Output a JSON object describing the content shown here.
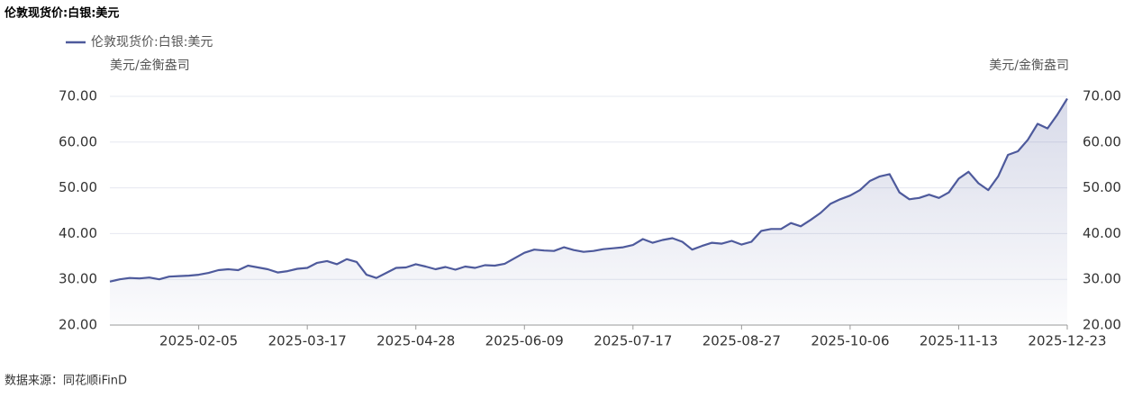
{
  "chart_data": {
    "type": "line",
    "title": "伦敦现货价:白银:美元",
    "y_axis_label": "美元/金衡盎司",
    "y2_axis_label": "美元/金衡盎司",
    "source": "数据来源：同花顺iFinD",
    "categories": [
      null,
      null,
      null,
      null,
      null,
      null,
      null,
      null,
      null,
      "2025-02-05",
      null,
      null,
      null,
      null,
      null,
      null,
      null,
      null,
      null,
      null,
      "2025-03-17",
      null,
      null,
      null,
      null,
      null,
      null,
      null,
      null,
      null,
      null,
      "2025-04-28",
      null,
      null,
      null,
      null,
      null,
      null,
      null,
      null,
      null,
      null,
      "2025-06-09",
      null,
      null,
      null,
      null,
      null,
      null,
      null,
      null,
      null,
      null,
      "2025-07-17",
      null,
      null,
      null,
      null,
      null,
      null,
      null,
      null,
      null,
      null,
      "2025-08-27",
      null,
      null,
      null,
      null,
      null,
      null,
      null,
      null,
      null,
      null,
      "2025-10-06",
      null,
      null,
      null,
      null,
      null,
      null,
      null,
      null,
      null,
      null,
      "2025-11-13",
      null,
      null,
      null,
      null,
      null,
      null,
      null,
      null,
      null,
      null,
      "2025-12-23"
    ],
    "series": [
      {
        "name": "伦敦现货价:白银:美元",
        "color": "#4e5a9c",
        "values": [
          29.5,
          30.0,
          30.3,
          30.2,
          30.4,
          30.0,
          30.6,
          30.7,
          30.8,
          31.0,
          31.4,
          32.0,
          32.2,
          32.0,
          33.0,
          32.6,
          32.2,
          31.5,
          31.8,
          32.3,
          32.5,
          33.6,
          34.0,
          33.3,
          34.4,
          33.8,
          31.0,
          30.3,
          31.4,
          32.5,
          32.6,
          33.3,
          32.8,
          32.2,
          32.7,
          32.1,
          32.8,
          32.5,
          33.1,
          33.0,
          33.4,
          34.6,
          35.8,
          36.5,
          36.3,
          36.2,
          37.0,
          36.4,
          36.0,
          36.2,
          36.6,
          36.8,
          37.0,
          37.5,
          38.8,
          38.0,
          38.6,
          39.0,
          38.2,
          36.5,
          37.3,
          38.0,
          37.8,
          38.4,
          37.6,
          38.2,
          40.6,
          41.0,
          41.0,
          42.3,
          41.6,
          43.0,
          44.5,
          46.5,
          47.5,
          48.3,
          49.5,
          51.5,
          52.5,
          53.0,
          49.0,
          47.5,
          47.8,
          48.5,
          47.8,
          49.0,
          52.0,
          53.5,
          51.0,
          49.5,
          52.5,
          57.2,
          58.0,
          60.5,
          64.0,
          63.0,
          66.0,
          69.5
        ]
      }
    ],
    "ylim": [
      20,
      70
    ],
    "yticks": [
      {
        "value": 20,
        "label": "20.00"
      },
      {
        "value": 30,
        "label": "30.00"
      },
      {
        "value": 40,
        "label": "40.00"
      },
      {
        "value": 50,
        "label": "50.00"
      },
      {
        "value": 60,
        "label": "60.00"
      },
      {
        "value": 70,
        "label": "70.00"
      }
    ],
    "y2lim": [
      20,
      70
    ],
    "y2ticks": [
      {
        "value": 20,
        "label": "20.00"
      },
      {
        "value": 30,
        "label": "30.00"
      },
      {
        "value": 40,
        "label": "40.00"
      },
      {
        "value": 50,
        "label": "50.00"
      },
      {
        "value": 60,
        "label": "60.00"
      },
      {
        "value": 70,
        "label": "70.00"
      }
    ],
    "grid": true,
    "legend": "top-left"
  }
}
